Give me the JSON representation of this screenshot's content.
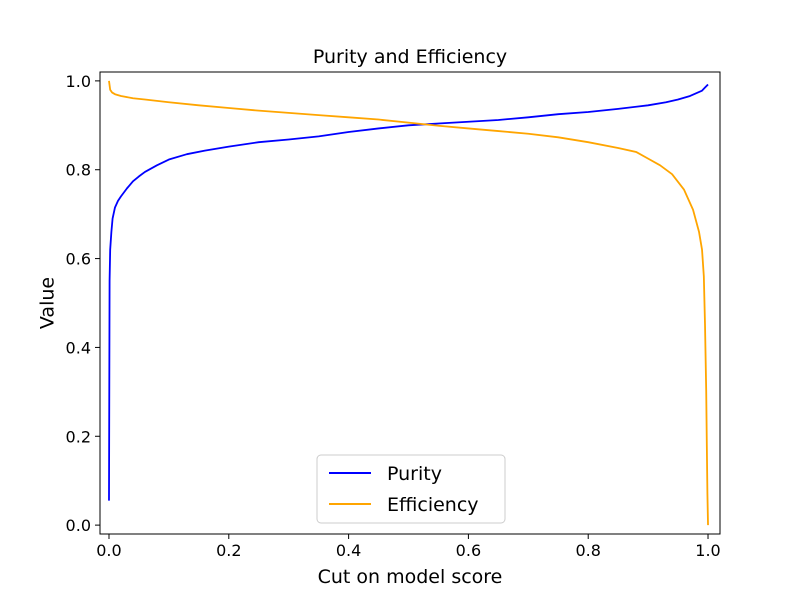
{
  "chart_data": {
    "type": "line",
    "title": "Purity and Efficiency",
    "xlabel": "Cut on model score",
    "ylabel": "Value",
    "xlim": [
      -0.015,
      1.02
    ],
    "ylim": [
      -0.02,
      1.02
    ],
    "xticks": [
      0.0,
      0.2,
      0.4,
      0.6,
      0.8,
      1.0
    ],
    "xtick_labels": [
      "0.0",
      "0.2",
      "0.4",
      "0.6",
      "0.8",
      "1.0"
    ],
    "yticks": [
      0.0,
      0.2,
      0.4,
      0.6,
      0.8,
      1.0
    ],
    "ytick_labels": [
      "0.0",
      "0.2",
      "0.4",
      "0.6",
      "0.8",
      "1.0"
    ],
    "grid": false,
    "legend_position": "lower center",
    "series": [
      {
        "name": "Purity",
        "color": "#0000ff",
        "x": [
          0.0,
          0.001,
          0.002,
          0.004,
          0.006,
          0.01,
          0.015,
          0.02,
          0.03,
          0.04,
          0.05,
          0.06,
          0.08,
          0.1,
          0.13,
          0.16,
          0.2,
          0.25,
          0.3,
          0.35,
          0.4,
          0.45,
          0.5,
          0.55,
          0.6,
          0.65,
          0.7,
          0.75,
          0.8,
          0.85,
          0.9,
          0.93,
          0.95,
          0.97,
          0.98,
          0.99,
          0.995,
          1.0
        ],
        "y": [
          0.055,
          0.55,
          0.62,
          0.66,
          0.69,
          0.715,
          0.73,
          0.74,
          0.758,
          0.774,
          0.785,
          0.795,
          0.81,
          0.823,
          0.835,
          0.843,
          0.852,
          0.862,
          0.868,
          0.875,
          0.885,
          0.893,
          0.9,
          0.904,
          0.908,
          0.912,
          0.918,
          0.925,
          0.93,
          0.937,
          0.945,
          0.952,
          0.958,
          0.966,
          0.972,
          0.978,
          0.985,
          0.992
        ]
      },
      {
        "name": "Efficiency",
        "color": "#ffa500",
        "x": [
          0.0,
          0.002,
          0.005,
          0.01,
          0.02,
          0.04,
          0.06,
          0.1,
          0.15,
          0.2,
          0.25,
          0.3,
          0.35,
          0.4,
          0.45,
          0.5,
          0.55,
          0.6,
          0.65,
          0.7,
          0.75,
          0.8,
          0.85,
          0.88,
          0.9,
          0.92,
          0.94,
          0.96,
          0.975,
          0.985,
          0.99,
          0.993,
          0.995,
          0.997,
          0.998,
          0.999,
          1.0
        ],
        "y": [
          1.0,
          0.98,
          0.974,
          0.97,
          0.966,
          0.961,
          0.958,
          0.952,
          0.945,
          0.939,
          0.933,
          0.928,
          0.923,
          0.918,
          0.913,
          0.906,
          0.899,
          0.893,
          0.887,
          0.881,
          0.873,
          0.862,
          0.849,
          0.84,
          0.825,
          0.81,
          0.79,
          0.755,
          0.71,
          0.66,
          0.62,
          0.56,
          0.45,
          0.3,
          0.18,
          0.07,
          0.0
        ]
      }
    ]
  }
}
